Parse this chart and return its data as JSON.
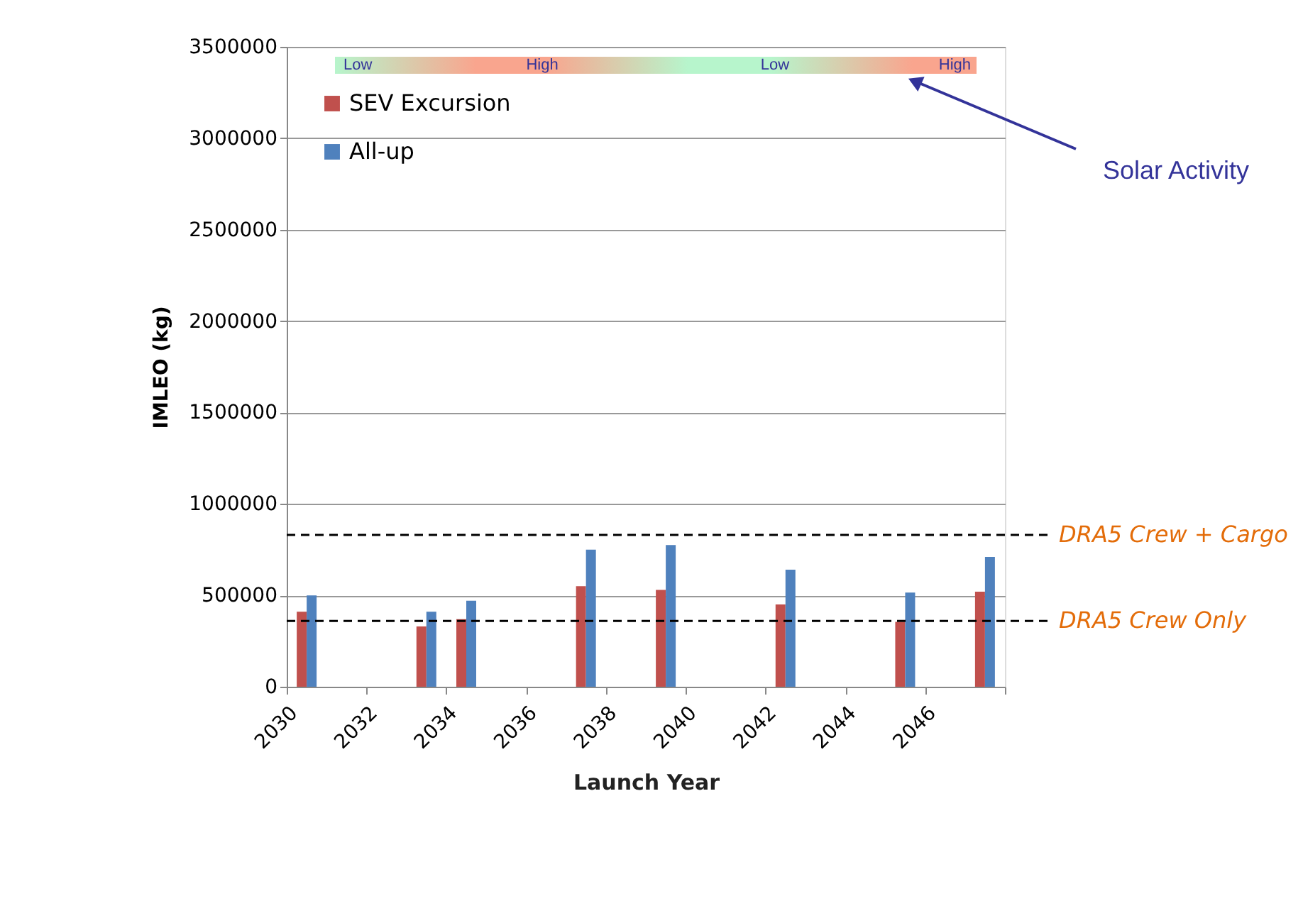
{
  "chart_data": {
    "type": "bar",
    "xlabel": "Launch Year",
    "ylabel": "IMLEO (kg)",
    "x": [
      2030.5,
      2033.5,
      2034.5,
      2037.5,
      2039.5,
      2042.5,
      2045.5,
      2047.5
    ],
    "series": [
      {
        "name": "SEV Excursion",
        "color": "#c0504d",
        "values": [
          410000,
          330000,
          370000,
          550000,
          530000,
          450000,
          355000,
          520000
        ]
      },
      {
        "name": "All-up",
        "color": "#4f81bd",
        "values": [
          500000,
          410000,
          470000,
          750000,
          775000,
          640000,
          515000,
          710000
        ]
      }
    ],
    "xlim": [
      2030,
      2048
    ],
    "xticks": [
      2030,
      2032,
      2034,
      2036,
      2038,
      2040,
      2042,
      2044,
      2046,
      {
        "value": 2048,
        "label": null
      }
    ],
    "ylim": [
      0,
      3500000
    ],
    "yticks": [
      0,
      500000,
      1000000,
      1500000,
      2000000,
      2500000,
      3000000,
      3500000
    ],
    "ref_lines": [
      {
        "axis": "y",
        "value": 830000,
        "label": "DRA5 Crew + Cargo",
        "color": "#000000",
        "line_style": "dashed"
      },
      {
        "axis": "y",
        "value": 360000,
        "label": "DRA5 Crew Only",
        "color": "#000000",
        "line_style": "dashed"
      }
    ],
    "annotations": [
      "Low",
      "High",
      "Low",
      "High",
      "Solar Activity"
    ],
    "grid": "y",
    "legend": "top left"
  }
}
